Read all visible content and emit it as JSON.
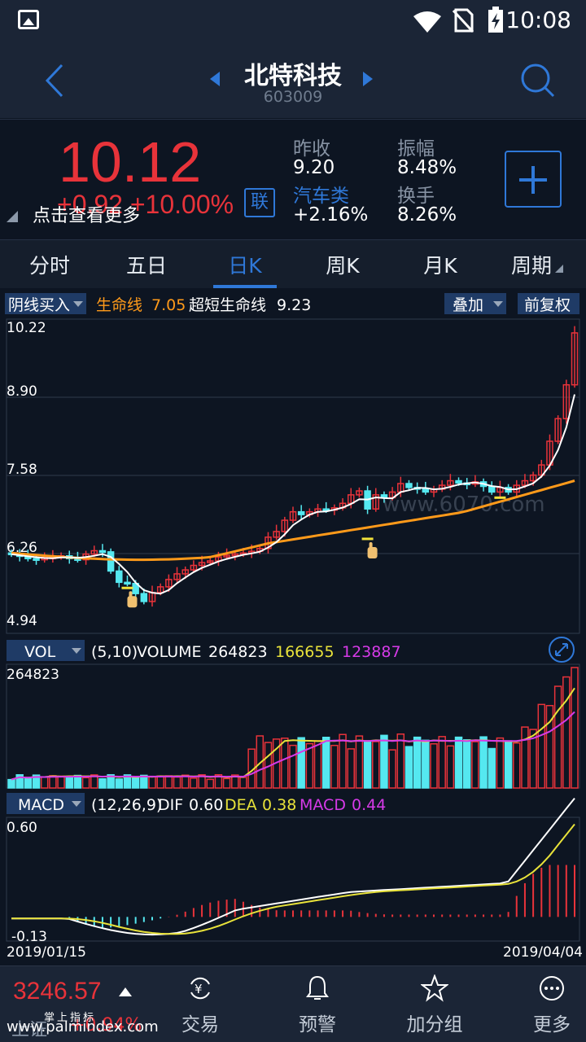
{
  "status_bar": {
    "time": "10:08"
  },
  "header": {
    "title": "北特科技",
    "code": "603009"
  },
  "quote": {
    "price": "10.12",
    "change": "+0.92",
    "change_pct": "+10.00%",
    "tip": "点击查看更多",
    "lian": "联",
    "prev_close_label": "昨收",
    "prev_close": "9.20",
    "amplitude_label": "振幅",
    "amplitude": "8.48%",
    "sector_label": "汽车类",
    "sector_change": "+2.16%",
    "turnover_label": "换手",
    "turnover": "8.26%"
  },
  "tabs": [
    {
      "label": "分时"
    },
    {
      "label": "五日"
    },
    {
      "label": "日K"
    },
    {
      "label": "周K"
    },
    {
      "label": "月K"
    },
    {
      "label": "周期"
    }
  ],
  "kline_panel": {
    "indicator": "阴线买入",
    "life_line_label": "生命线",
    "life_line_value": "7.05",
    "short_life_line_label": "超短生命线",
    "short_life_line_value": "9.23",
    "overlay_button": "叠加",
    "adjust_button": "前复权",
    "y_labels": [
      "10.22",
      "8.90",
      "7.58",
      "6.26",
      "4.94"
    ],
    "watermark": "www.6070.com"
  },
  "vol_panel": {
    "selector": "VOL",
    "params": "(5,10)",
    "volume_label": "VOLUME",
    "volume": "264823",
    "ma5": "166655",
    "ma10": "123887",
    "y_max": "264823"
  },
  "macd_panel": {
    "selector": "MACD",
    "params": "(12,26,9)",
    "dif_label": "DIF",
    "dif": "0.60",
    "dea_label": "DEA",
    "dea": "0.38",
    "macd_label": "MACD",
    "macd": "0.44",
    "y_top": "0.60",
    "y_bottom": "-0.13",
    "start_date": "2019/01/15",
    "end_date": "2019/04/04"
  },
  "chart_data": {
    "type": "candlestick",
    "title": "",
    "ylim": [
      4.94,
      10.22
    ],
    "x_range": [
      "2019/01/15",
      "2019/04/04"
    ],
    "series_notes": [
      "生命线",
      "超短生命线"
    ],
    "volume_max": 264823,
    "macd_range": [
      -0.13,
      0.6
    ]
  },
  "bottom_bar": {
    "index_value": "3246.57",
    "index_name": "上证",
    "index_pct": "+0.94%",
    "watermark_top": "掌上指标",
    "watermark_url": "www.palmindex.com",
    "items": [
      {
        "label": "交易"
      },
      {
        "label": "预警"
      },
      {
        "label": "加分组"
      },
      {
        "label": "更多"
      }
    ]
  }
}
